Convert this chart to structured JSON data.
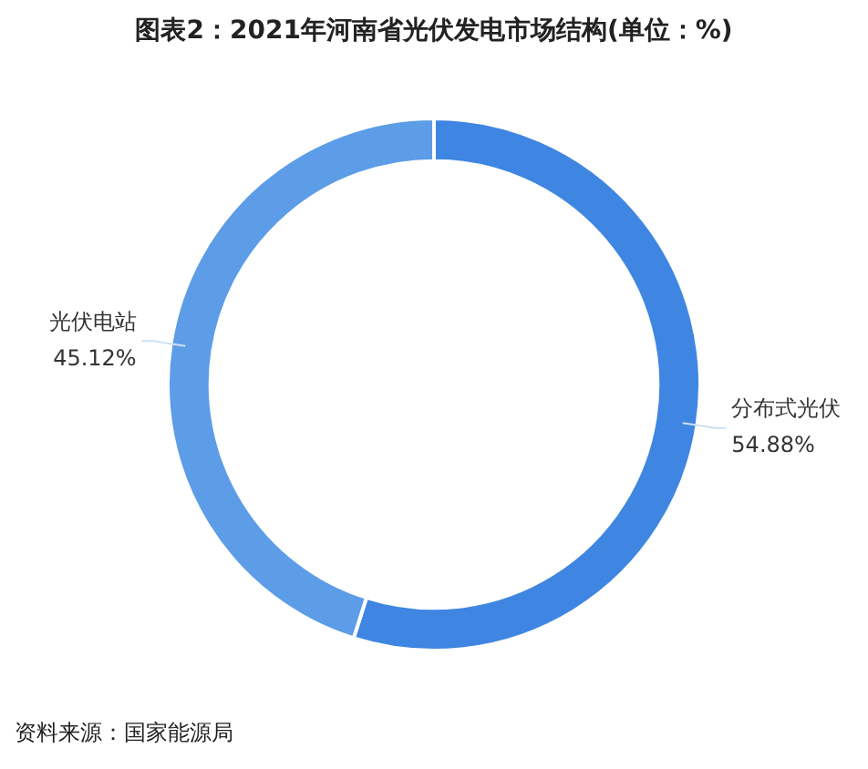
{
  "chart_data": {
    "type": "donut",
    "title": "图表2：2021年河南省光伏发电市场结构(单位：%)",
    "categories": [
      "分布式光伏",
      "光伏电站"
    ],
    "values": [
      54.88,
      45.12
    ],
    "value_labels": [
      "54.88%",
      "45.12%"
    ],
    "colors": [
      "#3f86e2",
      "#5d9de8"
    ],
    "legend": false,
    "annotations": [
      "资料来源：国家能源局"
    ]
  }
}
